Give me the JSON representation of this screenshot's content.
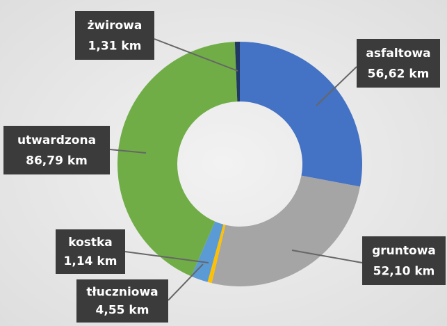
{
  "chart_data": {
    "type": "donut",
    "categories": [
      "asfaltowa",
      "gruntowa",
      "kostka",
      "tłuczniowa",
      "utwardzona",
      "żwirowa"
    ],
    "values": [
      56.62,
      52.1,
      1.14,
      4.55,
      86.79,
      1.31
    ],
    "value_labels": [
      "56,62 km",
      "52,10 km",
      "1,14 km",
      "4,55 km",
      "86,79 km",
      "1,31 km"
    ],
    "colors": [
      "#4472c4",
      "#a5a5a5",
      "#ffc000",
      "#5b9bd5",
      "#70ad47",
      "#1f3864"
    ]
  }
}
